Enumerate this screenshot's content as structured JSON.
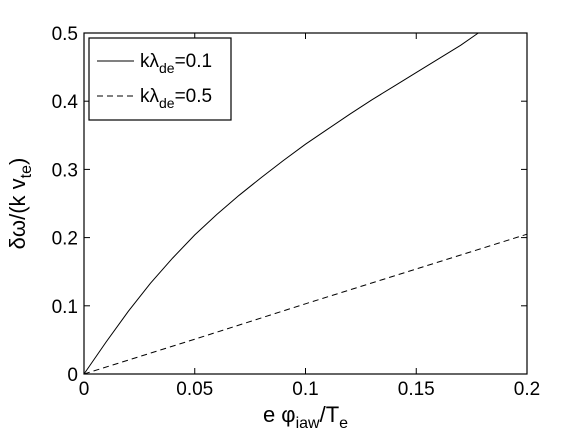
{
  "chart_data": {
    "type": "line",
    "xlabel": {
      "pre": "e φ",
      "sub1": "iaw",
      "mid": "/T",
      "sub2": "e"
    },
    "ylabel": {
      "pre": "δω/(k v",
      "sub": "te",
      "post": ")"
    },
    "xlim": [
      0,
      0.2
    ],
    "ylim": [
      0,
      0.5
    ],
    "xticks": [
      0,
      0.05,
      0.1,
      0.15,
      0.2
    ],
    "xtick_labels": [
      "0",
      "0.05",
      "0.1",
      "0.15",
      "0.2"
    ],
    "yticks": [
      0,
      0.1,
      0.2,
      0.3,
      0.4,
      0.5
    ],
    "ytick_labels": [
      "0",
      "0.1",
      "0.2",
      "0.3",
      "0.4",
      "0.5"
    ],
    "grid": false,
    "legend_position": "top-left",
    "series": [
      {
        "name": {
          "pre": "kλ",
          "sub": "de",
          "post": "=0.1"
        },
        "style": "solid",
        "color": "#000000",
        "x": [
          0,
          0.01,
          0.02,
          0.03,
          0.04,
          0.05,
          0.06,
          0.07,
          0.08,
          0.09,
          0.1,
          0.11,
          0.12,
          0.13,
          0.14,
          0.15,
          0.16,
          0.17,
          0.178
        ],
        "y": [
          0,
          0.047,
          0.092,
          0.133,
          0.17,
          0.204,
          0.234,
          0.262,
          0.288,
          0.313,
          0.337,
          0.359,
          0.381,
          0.402,
          0.422,
          0.442,
          0.462,
          0.482,
          0.5
        ]
      },
      {
        "name": {
          "pre": "kλ",
          "sub": "de",
          "post": "=0.5"
        },
        "style": "dashed",
        "color": "#000000",
        "x": [
          0,
          0.05,
          0.1,
          0.15,
          0.2
        ],
        "y": [
          0,
          0.051,
          0.103,
          0.154,
          0.205
        ]
      }
    ]
  }
}
